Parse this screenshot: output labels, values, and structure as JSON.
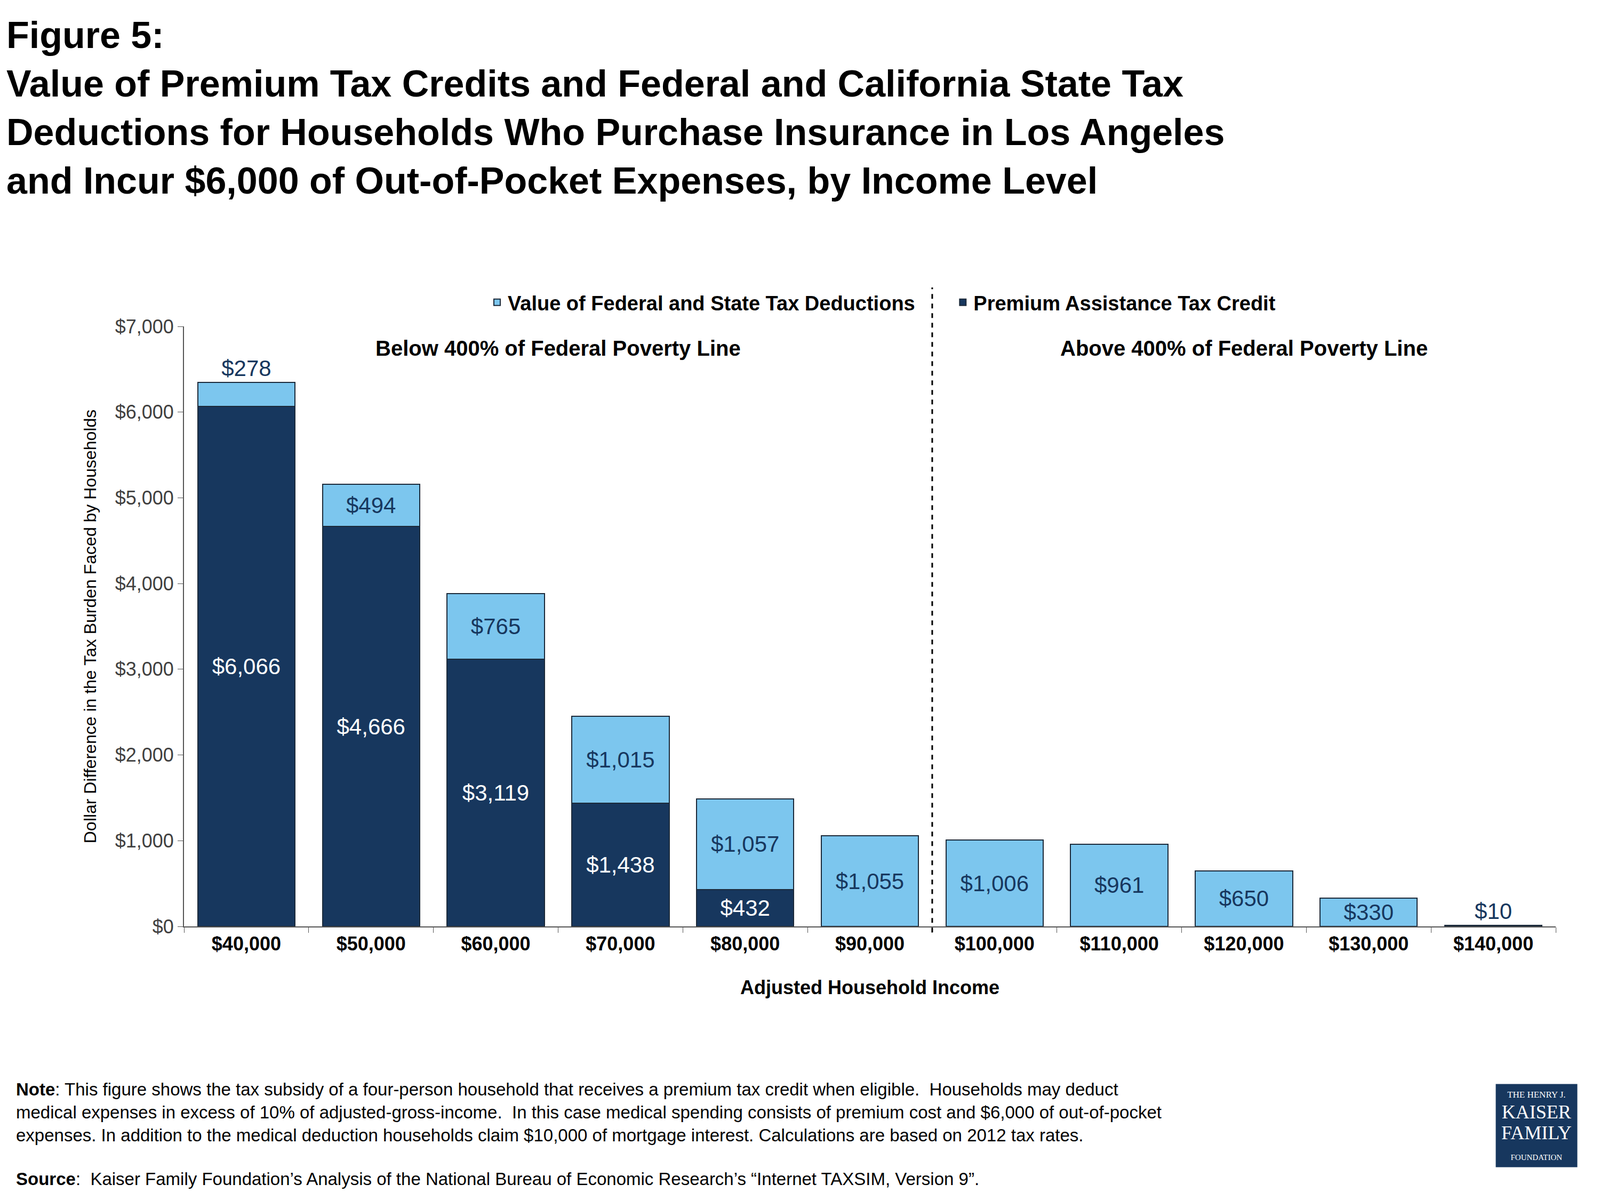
{
  "chart_data": {
    "type": "bar",
    "title": [
      "Figure 5:",
      "Value of Premium Tax Credits and Federal and California State Tax",
      "Deductions for Households Who Purchase Insurance in Los Angeles",
      "and Incur $6,000 of Out-of-Pocket Expenses, by Income Level"
    ],
    "x_label": "Adjusted Household Income",
    "y_label": "Dollar Difference in the Tax Burden Faced by Households",
    "categories": [
      "$40,000",
      "$50,000",
      "$60,000",
      "$70,000",
      "$80,000",
      "$90,000",
      "$100,000",
      "$110,000",
      "$120,000",
      "$130,000",
      "$140,000"
    ],
    "series": [
      {
        "name": "Value of Federal and State Tax Deductions",
        "color": "#7cc6ee",
        "values": [
          278,
          494,
          765,
          1015,
          1057,
          1055,
          1006,
          961,
          650,
          330,
          10
        ],
        "value_labels": [
          "$278",
          "$494",
          "$765",
          "$1,015",
          "$1,057",
          "$1,055",
          "$1,006",
          "$961",
          "$650",
          "$330",
          "$10"
        ]
      },
      {
        "name": "Premium Assistance Tax Credit",
        "color": "#17375e",
        "values": [
          6066,
          4666,
          3119,
          1438,
          432,
          null,
          null,
          null,
          null,
          null,
          null
        ],
        "value_labels": [
          "$6,066",
          "$4,666",
          "$3,119",
          "$1,438",
          "$432",
          null,
          null,
          null,
          null,
          null,
          null
        ]
      }
    ],
    "stacked": true,
    "data_labels": true,
    "grid": false,
    "legend": "top",
    "ylim": [
      0,
      7000
    ],
    "yticks": [
      {
        "value": 0,
        "label": "$0"
      },
      {
        "value": 1000,
        "label": "$1,000"
      },
      {
        "value": 2000,
        "label": "$2,000"
      },
      {
        "value": 3000,
        "label": "$3,000"
      },
      {
        "value": 4000,
        "label": "$4,000"
      },
      {
        "value": 5000,
        "label": "$5,000"
      },
      {
        "value": 6000,
        "label": "$6,000"
      },
      {
        "value": 7000,
        "label": "$7,000"
      }
    ],
    "annotations": [
      "Below 400% of Federal Poverty Line",
      "Above 400% of Federal Poverty Line"
    ],
    "note": [
      "Note: This figure shows the tax subsidy of a four-person household that receives a premium tax credit when eligible.  Households may deduct",
      "medical expenses in excess of 10% of adjusted-gross-income.  In this case medical spending consists of premium cost and $6,000 of out-of-pocket",
      "expenses. In addition to the medical deduction households claim $10,000 of mortgage interest. Calculations are based on 2012 tax rates."
    ],
    "source": "Source:  Kaiser Family Foundation’s Analysis of the National Bureau of Economic Research’s “Internet TAXSIM, Version 9”.",
    "logo": [
      "THE HENRY J.",
      "KAISER",
      "FAMILY",
      "FOUNDATION"
    ]
  }
}
